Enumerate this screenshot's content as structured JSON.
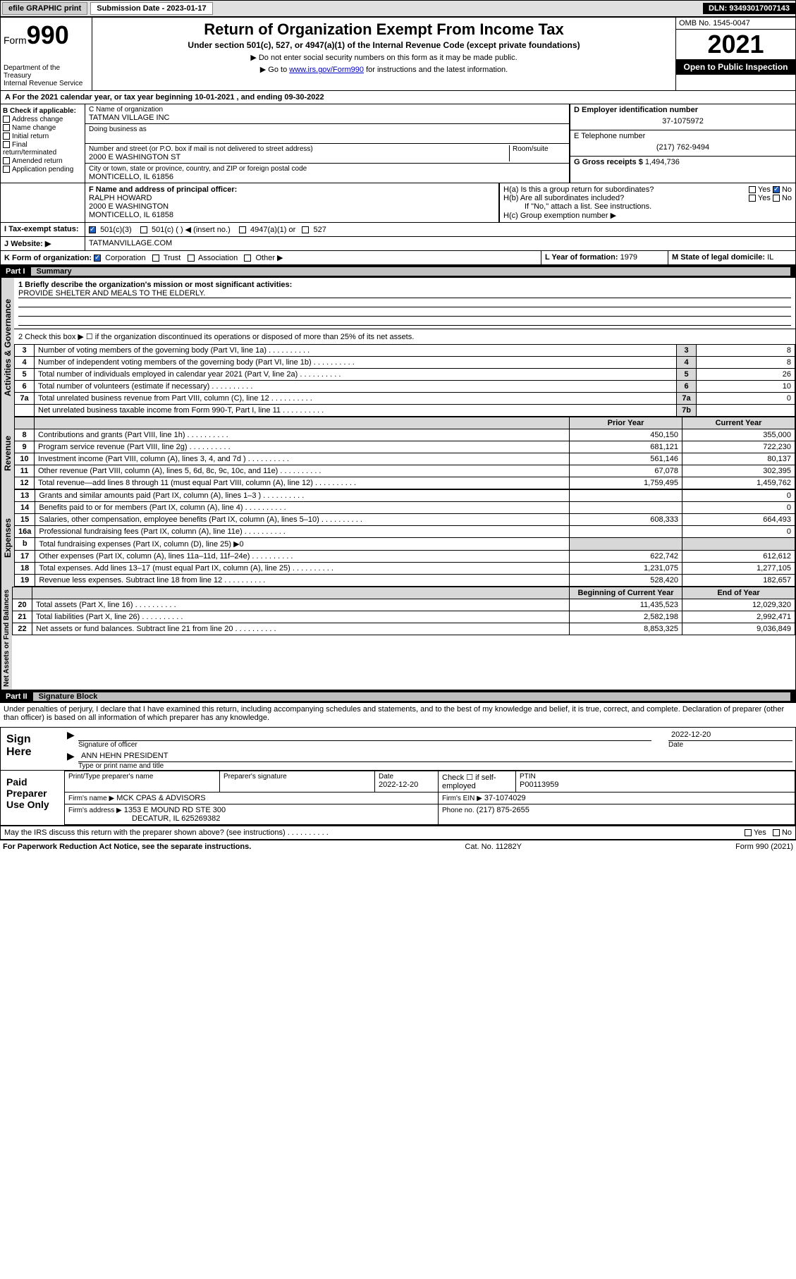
{
  "topbar": {
    "efile": "efile GRAPHIC print",
    "submission_label": "Submission Date - 2023-01-17",
    "dln": "DLN: 93493017007143"
  },
  "header": {
    "form_label": "Form",
    "form_number": "990",
    "dept": "Department of the Treasury",
    "irs": "Internal Revenue Service",
    "title": "Return of Organization Exempt From Income Tax",
    "subtitle": "Under section 501(c), 527, or 4947(a)(1) of the Internal Revenue Code (except private foundations)",
    "note1": "▶ Do not enter social security numbers on this form as it may be made public.",
    "note2_pre": "▶ Go to ",
    "note2_link": "www.irs.gov/Form990",
    "note2_post": " for instructions and the latest information.",
    "omb": "OMB No. 1545-0047",
    "year": "2021",
    "inspect": "Open to Public Inspection"
  },
  "lineA": "For the 2021 calendar year, or tax year beginning 10-01-2021   , and ending 09-30-2022",
  "boxB": {
    "label": "B Check if applicable:",
    "opts": [
      "Address change",
      "Name change",
      "Initial return",
      "Final return/terminated",
      "Amended return",
      "Application pending"
    ]
  },
  "boxC": {
    "label": "C Name of organization",
    "name": "TATMAN VILLAGE INC",
    "dba_label": "Doing business as",
    "addr_label": "Number and street (or P.O. box if mail is not delivered to street address)",
    "room_label": "Room/suite",
    "addr": "2000 E WASHINGTON ST",
    "city_label": "City or town, state or province, country, and ZIP or foreign postal code",
    "city": "MONTICELLO, IL  61856"
  },
  "boxD": {
    "label": "D Employer identification number",
    "value": "37-1075972"
  },
  "boxE": {
    "label": "E Telephone number",
    "value": "(217) 762-9494"
  },
  "boxG": {
    "label": "G Gross receipts $",
    "value": "1,494,736"
  },
  "boxF": {
    "label": "F  Name and address of principal officer:",
    "name": "RALPH HOWARD",
    "addr1": "2000 E WASHINGTON",
    "addr2": "MONTICELLO, IL  61858"
  },
  "boxH": {
    "a": "H(a)  Is this a group return for subordinates?",
    "b": "H(b)  Are all subordinates included?",
    "note": "If \"No,\" attach a list. See instructions.",
    "c": "H(c)  Group exemption number ▶",
    "yes": "Yes",
    "no": "No"
  },
  "boxI": {
    "label": "Tax-exempt status:",
    "opts": [
      "501(c)(3)",
      "501(c) (  ) ◀ (insert no.)",
      "4947(a)(1) or",
      "527"
    ]
  },
  "boxJ": {
    "label": "Website: ▶",
    "value": "TATMANVILLAGE.COM"
  },
  "boxK": {
    "label": "K Form of organization:",
    "opts": [
      "Corporation",
      "Trust",
      "Association",
      "Other ▶"
    ]
  },
  "boxL": {
    "label": "L Year of formation:",
    "value": "1979"
  },
  "boxM": {
    "label": "M State of legal domicile:",
    "value": "IL"
  },
  "part1": {
    "label": "Part I",
    "title": "Summary"
  },
  "summary": {
    "q1_label": "1  Briefly describe the organization's mission or most significant activities:",
    "q1_text": "PROVIDE SHELTER AND MEALS TO THE ELDERLY.",
    "q2": "2   Check this box ▶ ☐  if the organization discontinued its operations or disposed of more than 25% of its net assets.",
    "governance_label": "Activities & Governance",
    "revenue_label": "Revenue",
    "expenses_label": "Expenses",
    "netassets_label": "Net Assets or Fund Balances",
    "col_prior": "Prior Year",
    "col_current": "Current Year",
    "col_begin": "Beginning of Current Year",
    "col_end": "End of Year",
    "rows_gov": [
      {
        "n": "3",
        "d": "Number of voting members of the governing body (Part VI, line 1a)",
        "box": "3",
        "v": "8"
      },
      {
        "n": "4",
        "d": "Number of independent voting members of the governing body (Part VI, line 1b)",
        "box": "4",
        "v": "8"
      },
      {
        "n": "5",
        "d": "Total number of individuals employed in calendar year 2021 (Part V, line 2a)",
        "box": "5",
        "v": "26"
      },
      {
        "n": "6",
        "d": "Total number of volunteers (estimate if necessary)",
        "box": "6",
        "v": "10"
      },
      {
        "n": "7a",
        "d": "Total unrelated business revenue from Part VIII, column (C), line 12",
        "box": "7a",
        "v": "0"
      },
      {
        "n": "",
        "d": "Net unrelated business taxable income from Form 990-T, Part I, line 11",
        "box": "7b",
        "v": ""
      }
    ],
    "rows_rev": [
      {
        "n": "8",
        "d": "Contributions and grants (Part VIII, line 1h)",
        "p": "450,150",
        "c": "355,000"
      },
      {
        "n": "9",
        "d": "Program service revenue (Part VIII, line 2g)",
        "p": "681,121",
        "c": "722,230"
      },
      {
        "n": "10",
        "d": "Investment income (Part VIII, column (A), lines 3, 4, and 7d )",
        "p": "561,146",
        "c": "80,137"
      },
      {
        "n": "11",
        "d": "Other revenue (Part VIII, column (A), lines 5, 6d, 8c, 9c, 10c, and 11e)",
        "p": "67,078",
        "c": "302,395"
      },
      {
        "n": "12",
        "d": "Total revenue—add lines 8 through 11 (must equal Part VIII, column (A), line 12)",
        "p": "1,759,495",
        "c": "1,459,762"
      }
    ],
    "rows_exp": [
      {
        "n": "13",
        "d": "Grants and similar amounts paid (Part IX, column (A), lines 1–3 )",
        "p": "",
        "c": "0"
      },
      {
        "n": "14",
        "d": "Benefits paid to or for members (Part IX, column (A), line 4)",
        "p": "",
        "c": "0"
      },
      {
        "n": "15",
        "d": "Salaries, other compensation, employee benefits (Part IX, column (A), lines 5–10)",
        "p": "608,333",
        "c": "664,493"
      },
      {
        "n": "16a",
        "d": "Professional fundraising fees (Part IX, column (A), line 11e)",
        "p": "",
        "c": "0"
      },
      {
        "n": "b",
        "d": "Total fundraising expenses (Part IX, column (D), line 25) ▶0",
        "p": "shade",
        "c": "shade"
      },
      {
        "n": "17",
        "d": "Other expenses (Part IX, column (A), lines 11a–11d, 11f–24e)",
        "p": "622,742",
        "c": "612,612"
      },
      {
        "n": "18",
        "d": "Total expenses. Add lines 13–17 (must equal Part IX, column (A), line 25)",
        "p": "1,231,075",
        "c": "1,277,105"
      },
      {
        "n": "19",
        "d": "Revenue less expenses. Subtract line 18 from line 12",
        "p": "528,420",
        "c": "182,657"
      }
    ],
    "rows_net": [
      {
        "n": "20",
        "d": "Total assets (Part X, line 16)",
        "p": "11,435,523",
        "c": "12,029,320"
      },
      {
        "n": "21",
        "d": "Total liabilities (Part X, line 26)",
        "p": "2,582,198",
        "c": "2,992,471"
      },
      {
        "n": "22",
        "d": "Net assets or fund balances. Subtract line 21 from line 20",
        "p": "8,853,325",
        "c": "9,036,849"
      }
    ]
  },
  "part2": {
    "label": "Part II",
    "title": "Signature Block"
  },
  "sig": {
    "penalties": "Under penalties of perjury, I declare that I have examined this return, including accompanying schedules and statements, and to the best of my knowledge and belief, it is true, correct, and complete. Declaration of preparer (other than officer) is based on all information of which preparer has any knowledge.",
    "sign_here": "Sign Here",
    "sig_officer": "Signature of officer",
    "sig_date": "2022-12-20",
    "date_label": "Date",
    "officer_name": "ANN HEHN  PRESIDENT",
    "type_label": "Type or print name and title",
    "paid": "Paid Preparer Use Only",
    "prep_name_label": "Print/Type preparer's name",
    "prep_sig_label": "Preparer's signature",
    "prep_date_label": "Date",
    "prep_date": "2022-12-20",
    "check_label": "Check ☐ if self-employed",
    "ptin_label": "PTIN",
    "ptin": "P00113959",
    "firm_name_label": "Firm's name   ▶",
    "firm_name": "MCK CPAS & ADVISORS",
    "firm_ein_label": "Firm's EIN ▶",
    "firm_ein": "37-1074029",
    "firm_addr_label": "Firm's address ▶",
    "firm_addr1": "1353 E MOUND RD STE 300",
    "firm_addr2": "DECATUR, IL  625269382",
    "phone_label": "Phone no.",
    "phone": "(217) 875-2655",
    "discuss": "May the IRS discuss this return with the preparer shown above? (see instructions)"
  },
  "footer": {
    "left": "For Paperwork Reduction Act Notice, see the separate instructions.",
    "mid": "Cat. No. 11282Y",
    "right": "Form 990 (2021)"
  }
}
